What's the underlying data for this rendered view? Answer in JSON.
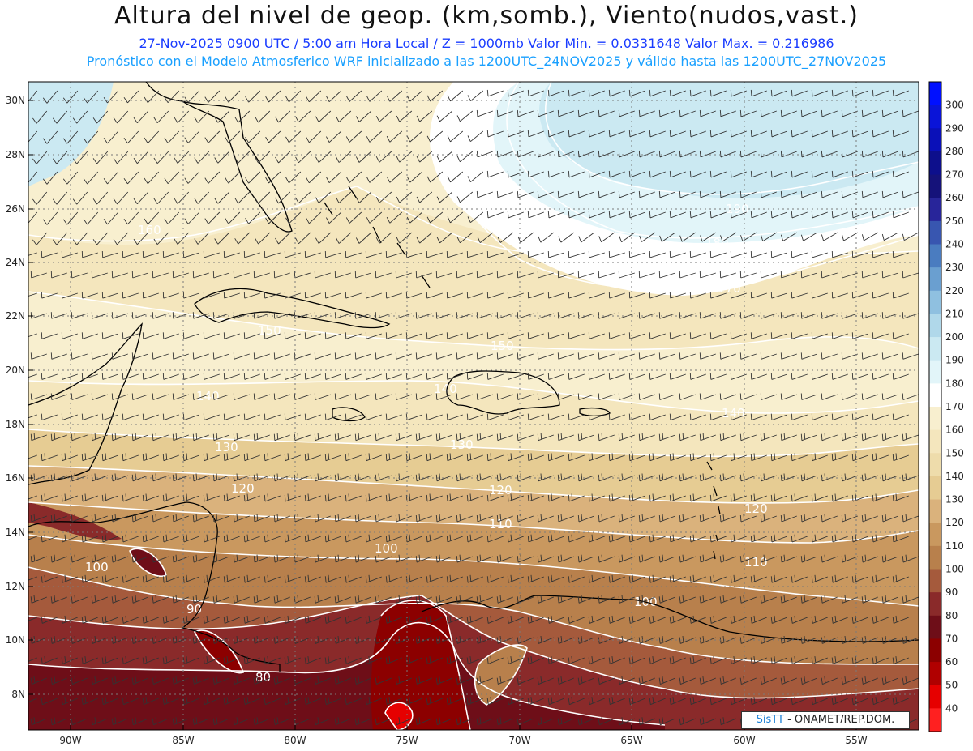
{
  "header": {
    "title": "Altura del nivel de geop. (km,somb.), Viento(nudos,vast.)",
    "subtitle1": "27-Nov-2025  0900 UTC / 5:00 am Hora Local / Z = 1000mb  Valor Min. = 0.0331648   Valor Max. = 0.216986",
    "subtitle2": "Pronóstico con el Modelo Atmosferico WRF inicializado a las 1200UTC_24NOV2025 y válido hasta las  1200UTC_27NOV2025"
  },
  "map": {
    "lat_labels": [
      "30N",
      "28N",
      "26N",
      "24N",
      "22N",
      "20N",
      "18N",
      "16N",
      "14N",
      "12N",
      "10N",
      "8N"
    ],
    "lon_labels": [
      "90W",
      "85W",
      "80W",
      "75W",
      "70W",
      "65W",
      "60W",
      "55W"
    ],
    "contour_labels": [
      "190",
      "180",
      "170",
      "160",
      "150",
      "150",
      "140",
      "140",
      "140",
      "130",
      "130",
      "120",
      "120",
      "120",
      "110",
      "110",
      "100",
      "100",
      "100",
      "90",
      "80"
    ]
  },
  "colorbar": {
    "levels": [
      "300",
      "290",
      "280",
      "270",
      "260",
      "250",
      "240",
      "230",
      "220",
      "210",
      "200",
      "190",
      "180",
      "170",
      "160",
      "150",
      "140",
      "130",
      "120",
      "110",
      "100",
      "90",
      "80",
      "70",
      "60",
      "50",
      "40"
    ],
    "colors": [
      "#0010ff",
      "#0a14d8",
      "#0a10b8",
      "#0d0f8c",
      "#15127a",
      "#28259a",
      "#3856b0",
      "#4a7cc0",
      "#6a9fd0",
      "#8fc0e0",
      "#b0d8ea",
      "#cbe9f2",
      "#e2f5f9",
      "#ffffff",
      "#f8efcf",
      "#f4e6bd",
      "#eedcab",
      "#e6cc93",
      "#dab27c",
      "#c9985f",
      "#b8804c",
      "#a55a3c",
      "#8a2a2a",
      "#6e0e18",
      "#8c0000",
      "#b00000",
      "#e60000",
      "#ff2020"
    ]
  },
  "footer": {
    "credit_logo": "SisTT",
    "credit_text": " - ONAMET/REP.DOM."
  }
}
